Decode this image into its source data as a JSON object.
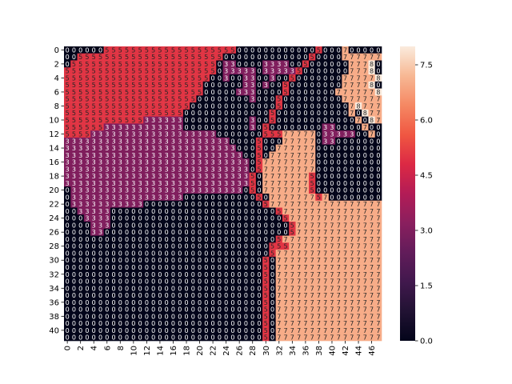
{
  "chart_data": {
    "type": "heatmap",
    "title": "",
    "xlabel": "",
    "ylabel": "",
    "n_rows": 42,
    "n_cols": 48,
    "x_ticks": [
      "0",
      "2",
      "4",
      "6",
      "8",
      "10",
      "12",
      "14",
      "16",
      "18",
      "20",
      "22",
      "24",
      "26",
      "28",
      "30",
      "32",
      "34",
      "36",
      "38",
      "40",
      "42",
      "44",
      "46"
    ],
    "y_ticks": [
      "0",
      "2",
      "4",
      "6",
      "8",
      "10",
      "12",
      "14",
      "16",
      "18",
      "20",
      "22",
      "24",
      "26",
      "28",
      "30",
      "32",
      "34",
      "36",
      "38",
      "40"
    ],
    "annotations": true,
    "colormap": "rocket",
    "colorbar": {
      "vmin": 0,
      "vmax": 8,
      "ticks": [
        "0.0",
        "1.5",
        "3.0",
        "4.5",
        "6.0",
        "7.5"
      ]
    },
    "rows": [
      "000000555555555555555555550000000000000000000000",
      "005555555555555555555555000000000000000000000000",
      "055555555555555555555550000000333300000000000000",
      "555555555555555555555550000000333330000000000000",
      "555555555555555555555500000000030000000000000000",
      "555555555555555555555000000000300000000000000000",
      "555555555555555555555000000000000000000000000000",
      "555555555555555555550000000000000000000000000000",
      "555555555555555555500000000000000000000000000000",
      "555555555555555555000000000000000000000000000000",
      "555555555555333333000000000000000000000000000000",
      "555555333333333333000000000000000000000000000000",
      "555533333333333333333330000000000000000000000000",
      "333333333333333333333333300000000000000000000000",
      "333333333333333333333333330000000000000000000000",
      "333333333333333333333333333000000000000000000000",
      "333333333333333333333333333300000000000000000000",
      "333333333333333333333333333300000000000000000000",
      "333333333333333333333333333300000000000000000000",
      "333333333333333333333333333300000000000000000000",
      "033333333333333333333333333000000000000000000000",
      "033333333333333333000000000000000000000000000000",
      "033333333333000000000000000000000000000000000000",
      "003333300000000000000000000000000000000000000000",
      "000333300000000000000000000000000000000000000000",
      "000033300000000000000000000000000000000000000000",
      "000033000000000000000000000000000000000000000000",
      "000000000000000000000000000000000000000000000000",
      "000000000000000000000000000000000000000000000000",
      "000000000000000000000000000000000000000000000000",
      "000000000000000000000000000000000000000000000000",
      "000000000000000000000000000000000000000000000000",
      "000000000000000000000000000000000000000000000000",
      "000000000000000000000000000000000000000000000000",
      "000000000000000000000000000000000000000000000000",
      "000000000000000000000000000000000000000000000000",
      "000000000000000000000000000000000000000000000000",
      "000000000000000000000000000000000000000000000000",
      "000000000000000000000000000000000000000000000000",
      "000000000000000000000000000000000000000000000000",
      "000000000000000000000000000000000000000000000000",
      "000000000000000000000000000000000000000000000000"
    ],
    "overlays": [
      {
        "value": 3,
        "cells": [
          [
            2,
            24
          ],
          [
            2,
            25
          ],
          [
            3,
            24
          ],
          [
            3,
            25
          ],
          [
            3,
            26
          ],
          [
            3,
            27
          ],
          [
            3,
            28
          ],
          [
            4,
            24
          ],
          [
            4,
            27
          ],
          [
            4,
            28
          ],
          [
            5,
            27
          ],
          [
            5,
            28
          ],
          [
            6,
            26
          ],
          [
            6,
            27
          ],
          [
            6,
            28
          ],
          [
            7,
            28
          ],
          [
            10,
            28
          ],
          [
            11,
            28
          ]
        ]
      },
      {
        "value": 5,
        "cells": [
          [
            0,
            38
          ],
          [
            1,
            37
          ],
          [
            2,
            36
          ],
          [
            3,
            35
          ],
          [
            4,
            34
          ],
          [
            5,
            33
          ],
          [
            6,
            33
          ],
          [
            7,
            32
          ],
          [
            8,
            32
          ],
          [
            9,
            31
          ],
          [
            10,
            31
          ],
          [
            11,
            30
          ],
          [
            12,
            30
          ],
          [
            13,
            29
          ],
          [
            14,
            29
          ],
          [
            15,
            29
          ],
          [
            16,
            29
          ],
          [
            17,
            29
          ],
          [
            18,
            28
          ],
          [
            19,
            28
          ],
          [
            20,
            28
          ],
          [
            21,
            29
          ],
          [
            22,
            30
          ],
          [
            23,
            32
          ],
          [
            24,
            33
          ],
          [
            25,
            34
          ],
          [
            26,
            34
          ],
          [
            27,
            32
          ],
          [
            28,
            31
          ],
          [
            29,
            31
          ],
          [
            30,
            30
          ],
          [
            31,
            30
          ],
          [
            32,
            30
          ],
          [
            33,
            30
          ],
          [
            34,
            30
          ],
          [
            35,
            30
          ],
          [
            36,
            30
          ],
          [
            37,
            30
          ],
          [
            38,
            30
          ],
          [
            39,
            30
          ],
          [
            40,
            30
          ],
          [
            41,
            30
          ],
          [
            18,
            37
          ],
          [
            19,
            37
          ],
          [
            20,
            37
          ],
          [
            21,
            38
          ],
          [
            12,
            31
          ],
          [
            12,
            32
          ],
          [
            28,
            32
          ],
          [
            28,
            33
          ]
        ]
      },
      {
        "value": 7,
        "cells": [
          [
            0,
            42
          ],
          [
            1,
            42
          ],
          [
            1,
            43
          ],
          [
            2,
            43
          ],
          [
            3,
            43
          ],
          [
            4,
            42
          ],
          [
            5,
            42
          ],
          [
            6,
            41
          ],
          [
            7,
            42
          ],
          [
            8,
            43
          ],
          [
            9,
            43
          ],
          [
            10,
            44
          ],
          [
            11,
            45
          ],
          [
            12,
            46
          ]
        ]
      },
      {
        "value": 8,
        "cells": [
          [
            2,
            46
          ],
          [
            3,
            46
          ],
          [
            4,
            47
          ],
          [
            5,
            46
          ],
          [
            6,
            47
          ],
          [
            8,
            44
          ],
          [
            9,
            45
          ],
          [
            10,
            46
          ]
        ]
      },
      {
        "value": 3,
        "cells": [
          [
            11,
            39
          ],
          [
            11,
            40
          ],
          [
            12,
            39
          ],
          [
            12,
            40
          ],
          [
            12,
            41
          ],
          [
            12,
            42
          ],
          [
            12,
            43
          ],
          [
            13,
            39
          ],
          [
            13,
            40
          ]
        ]
      }
    ],
    "regions7": [
      {
        "row": 12,
        "from": 33,
        "to": 37
      },
      {
        "row": 13,
        "from": 33,
        "to": 37
      },
      {
        "row": 14,
        "from": 32,
        "to": 37
      },
      {
        "row": 15,
        "from": 31,
        "to": 37
      },
      {
        "row": 16,
        "from": 30,
        "to": 37
      },
      {
        "row": 17,
        "from": 30,
        "to": 37
      },
      {
        "row": 18,
        "from": 30,
        "to": 37
      },
      {
        "row": 19,
        "from": 30,
        "to": 37
      },
      {
        "row": 20,
        "from": 30,
        "to": 37
      },
      {
        "row": 21,
        "from": 31,
        "to": 39
      },
      {
        "row": 22,
        "from": 31,
        "to": 47
      },
      {
        "row": 23,
        "from": 33,
        "to": 47
      },
      {
        "row": 24,
        "from": 34,
        "to": 47
      },
      {
        "row": 25,
        "from": 35,
        "to": 47
      },
      {
        "row": 26,
        "from": 35,
        "to": 47
      },
      {
        "row": 27,
        "from": 33,
        "to": 47
      },
      {
        "row": 28,
        "from": 34,
        "to": 47
      },
      {
        "row": 29,
        "from": 32,
        "to": 47
      },
      {
        "row": 30,
        "from": 32,
        "to": 47
      },
      {
        "row": 31,
        "from": 32,
        "to": 47
      },
      {
        "row": 32,
        "from": 32,
        "to": 47
      },
      {
        "row": 33,
        "from": 32,
        "to": 47
      },
      {
        "row": 34,
        "from": 32,
        "to": 47
      },
      {
        "row": 35,
        "from": 32,
        "to": 47
      },
      {
        "row": 36,
        "from": 32,
        "to": 47
      },
      {
        "row": 37,
        "from": 32,
        "to": 47
      },
      {
        "row": 38,
        "from": 32,
        "to": 47
      },
      {
        "row": 39,
        "from": 32,
        "to": 47
      },
      {
        "row": 40,
        "from": 32,
        "to": 47
      },
      {
        "row": 41,
        "from": 32,
        "to": 47
      },
      {
        "row": 1,
        "from": 44,
        "to": 47
      },
      {
        "row": 2,
        "from": 44,
        "to": 45
      },
      {
        "row": 3,
        "from": 44,
        "to": 45
      },
      {
        "row": 4,
        "from": 43,
        "to": 46
      },
      {
        "row": 5,
        "from": 43,
        "to": 45
      },
      {
        "row": 6,
        "from": 42,
        "to": 46
      },
      {
        "row": 7,
        "from": 43,
        "to": 47
      },
      {
        "row": 8,
        "from": 45,
        "to": 47
      },
      {
        "row": 9,
        "from": 46,
        "to": 47
      },
      {
        "row": 10,
        "from": 47,
        "to": 47
      }
    ]
  }
}
